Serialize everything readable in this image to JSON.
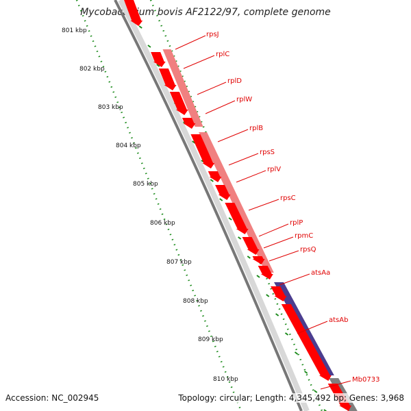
{
  "title": "Mycobacterium bovis AF2122/97, complete genome",
  "accession": "Accession: NC_002945",
  "summary": "Topology: circular; Length: 4,345,492 bp; Genes: 3,968",
  "colors": {
    "forward_gene": "#ff0000",
    "reverse_gene": "#f08080",
    "purple_gene": "#4b3d8f",
    "gray_gene": "#808080",
    "backbone": "#888888",
    "tick_green": "#1a8a1a",
    "label_red": "#e00000"
  },
  "kbp_labels": [
    "801 kbp",
    "802 kbp",
    "803 kbp",
    "804 kbp",
    "805 kbp",
    "806 kbp",
    "807 kbp",
    "808 kbp",
    "809 kbp",
    "810 kbp"
  ],
  "gene_labels": [
    "rpsJ",
    "rplC",
    "rplD",
    "rplW",
    "rplB",
    "rpsS",
    "rplV",
    "rpsC",
    "rplP",
    "rpmC",
    "rpsQ",
    "atsAa",
    "atsAb",
    "Mb0733"
  ]
}
